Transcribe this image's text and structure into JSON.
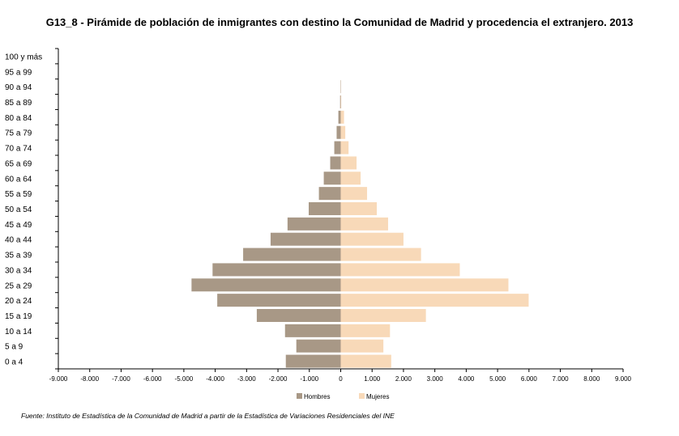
{
  "chart_data": {
    "type": "bar",
    "orientation": "horizontal",
    "title": "G13_8 - Pirámide de población de inmigrantes con destino la Comunidad de Madrid y procedencia el extranjero. 2013",
    "categories": [
      "0 a 4",
      "5 a 9",
      "10 a 14",
      "15 a 19",
      "20 a 24",
      "25 a 29",
      "30 a 34",
      "35 a 39",
      "40 a 44",
      "45 a 49",
      "50 a 54",
      "55 a 59",
      "60 a 64",
      "65 a 69",
      "70 a 74",
      "75 a 79",
      "80 a 84",
      "85 a 89",
      "90 a 94",
      "95 a 99",
      "100 y más"
    ],
    "series": [
      {
        "name": "Hombres",
        "color": "#a89886",
        "values": [
          -1750,
          -1415,
          -1775,
          -2675,
          -3935,
          -4755,
          -4085,
          -3110,
          -2235,
          -1695,
          -1020,
          -695,
          -540,
          -335,
          -205,
          -130,
          -75,
          -20,
          -10,
          0,
          0
        ]
      },
      {
        "name": "Mujeres",
        "color": "#f8d9b8",
        "values": [
          1610,
          1360,
          1570,
          2715,
          5990,
          5345,
          3795,
          2560,
          2000,
          1510,
          1150,
          840,
          635,
          505,
          250,
          145,
          105,
          15,
          5,
          0,
          0
        ]
      }
    ],
    "xlim": [
      -9000,
      9000
    ],
    "xticks": [
      -9000,
      -8000,
      -7000,
      -6000,
      -5000,
      -4000,
      -3000,
      -2000,
      -1000,
      0,
      1000,
      2000,
      3000,
      4000,
      5000,
      6000,
      7000,
      8000,
      9000
    ],
    "xtick_labels": [
      "-9.000",
      "-8.000",
      "-7.000",
      "-6.000",
      "-5.000",
      "-4.000",
      "-3.000",
      "-2.000",
      "-1.000",
      "0",
      "1.000",
      "2.000",
      "3.000",
      "4.000",
      "5.000",
      "6.000",
      "7.000",
      "8.000",
      "9.000"
    ],
    "legend_position": "bottom",
    "grid": false
  },
  "source": "Fuente: Instituto de Estadística de la Comunidad de Madrid a partir de la Estadística de Variaciones Residenciales del  INE"
}
